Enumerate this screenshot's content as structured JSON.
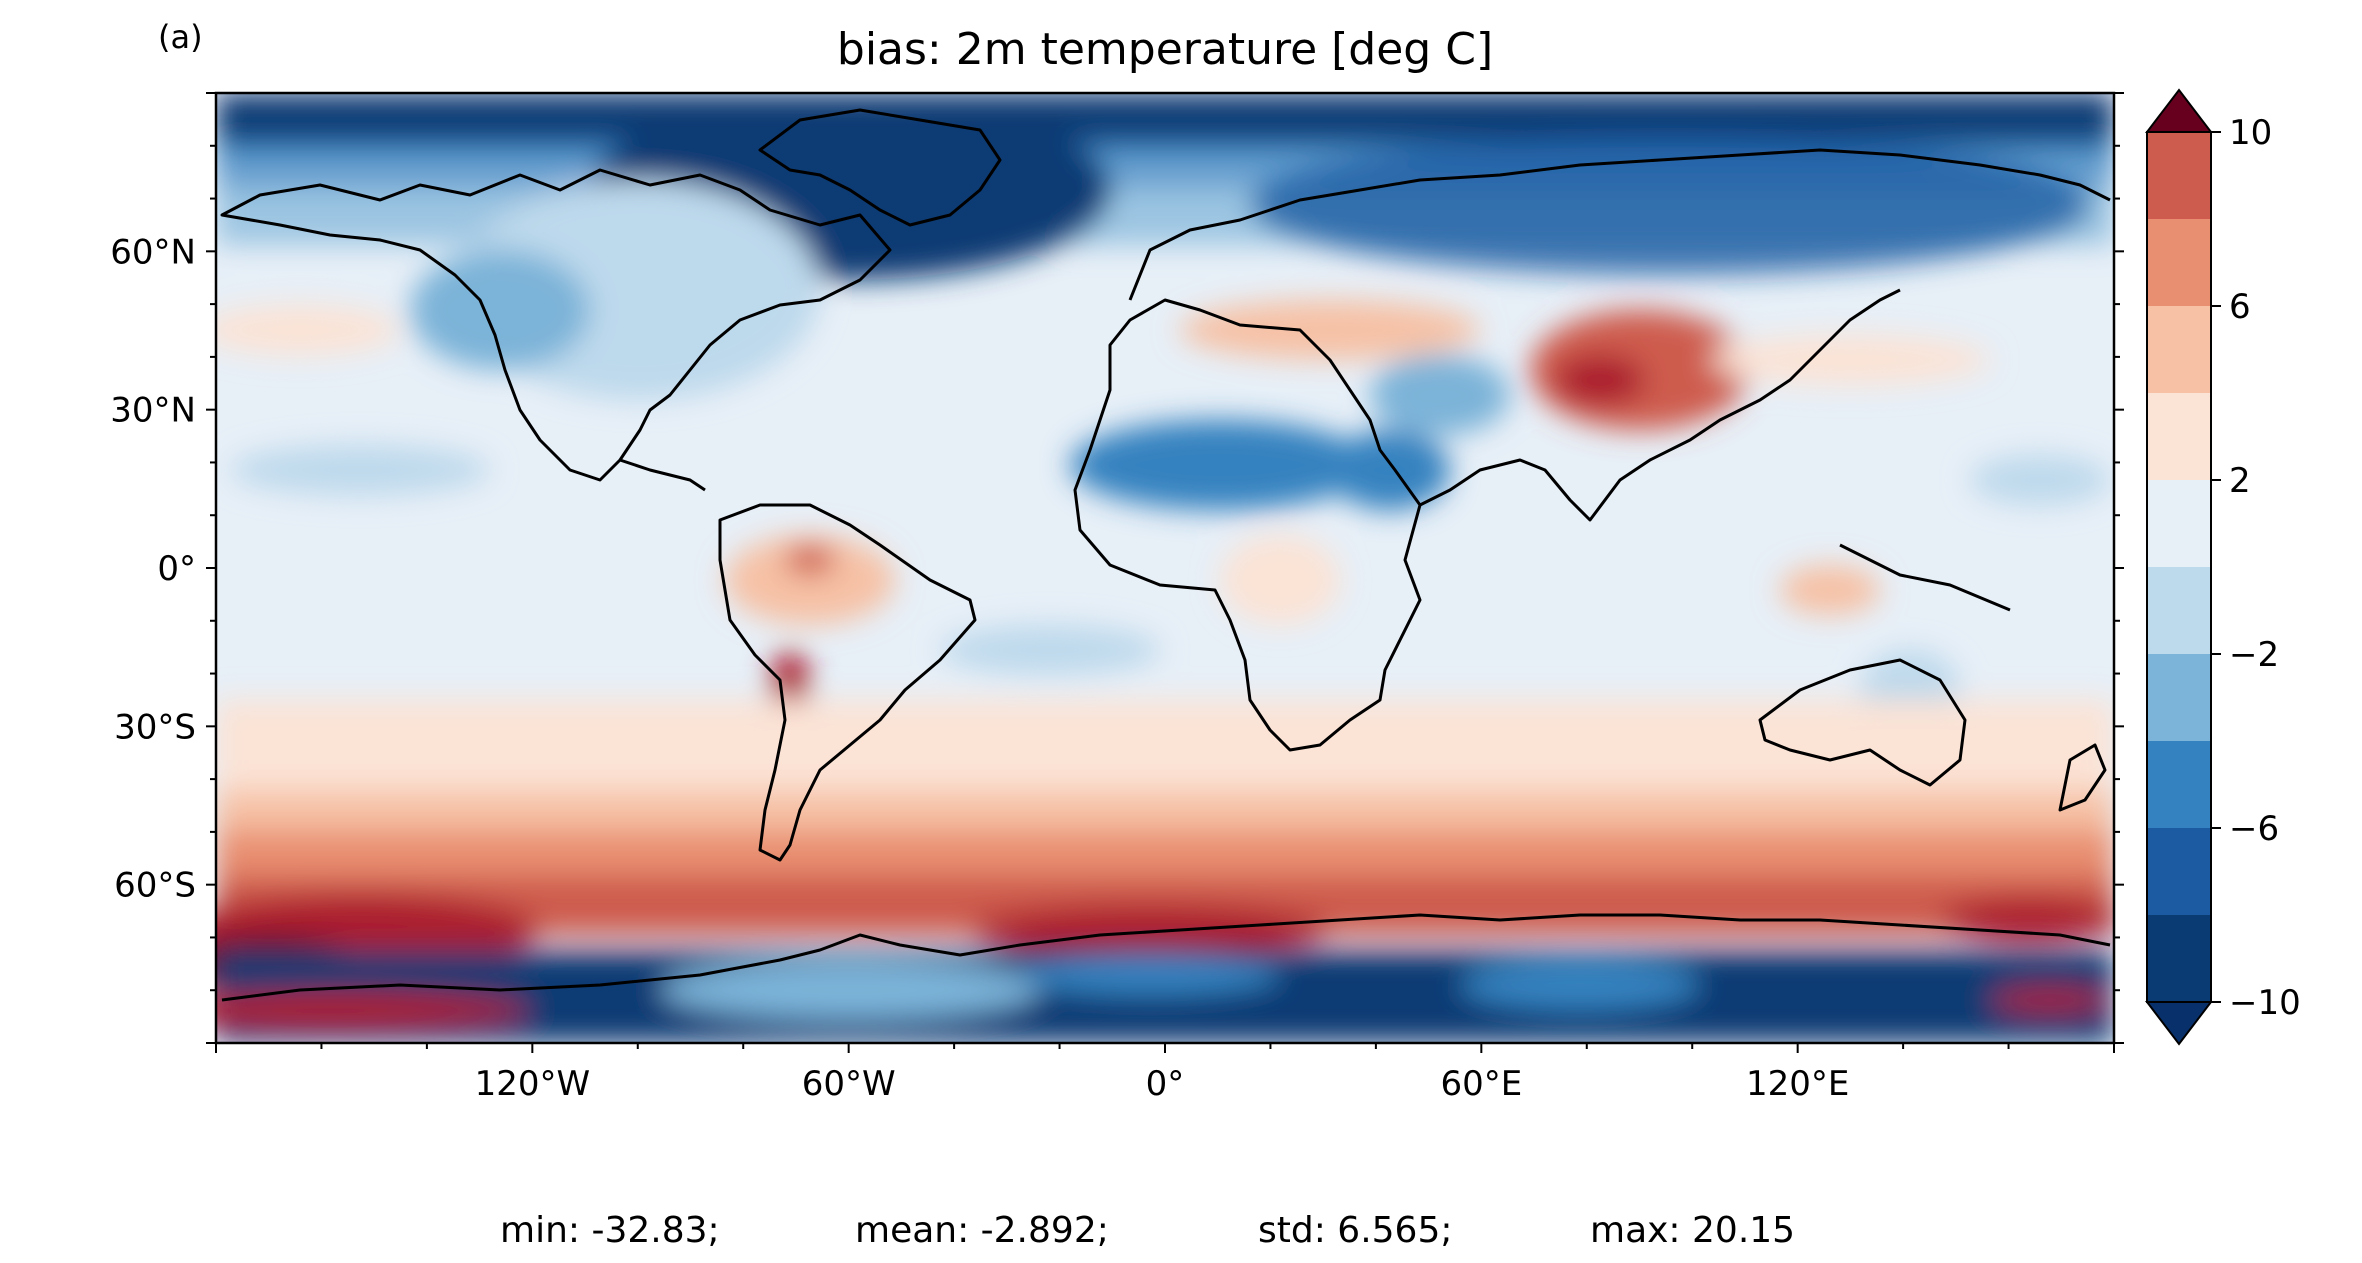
{
  "panel_label": "(a)",
  "title": "bias: 2m temperature [deg C]",
  "map": {
    "lon_ticks": [
      "120°W",
      "60°W",
      "0°",
      "60°E",
      "120°E"
    ],
    "lat_ticks": [
      "60°N",
      "30°N",
      "0°",
      "30°S",
      "60°S"
    ],
    "lon_range": [
      -180,
      180
    ],
    "lat_range": [
      -90,
      90
    ]
  },
  "colorbar": {
    "tick_labels": [
      "10",
      "6",
      "2",
      "−2",
      "−6",
      "−10"
    ],
    "tick_values": [
      10,
      6,
      2,
      -2,
      -6,
      -10
    ],
    "levels": [
      -10,
      -8,
      -6,
      -4,
      -2,
      0,
      2,
      4,
      6,
      8,
      10
    ],
    "colors": [
      "#0b3b73",
      "#1c5aa1",
      "#3582c0",
      "#7cb3d8",
      "#bdd9ec",
      "#e7eff7",
      "#fbe3d6",
      "#f6c1a5",
      "#e98f71",
      "#ce5c4e",
      "#ab1e2f"
    ],
    "under_color": "#08306b",
    "over_color": "#67001f",
    "extend": "both"
  },
  "stats": {
    "min": "min: -32.83;",
    "mean": "mean: -2.892;",
    "std": "std: 6.565;",
    "max": "max: 20.15"
  }
}
